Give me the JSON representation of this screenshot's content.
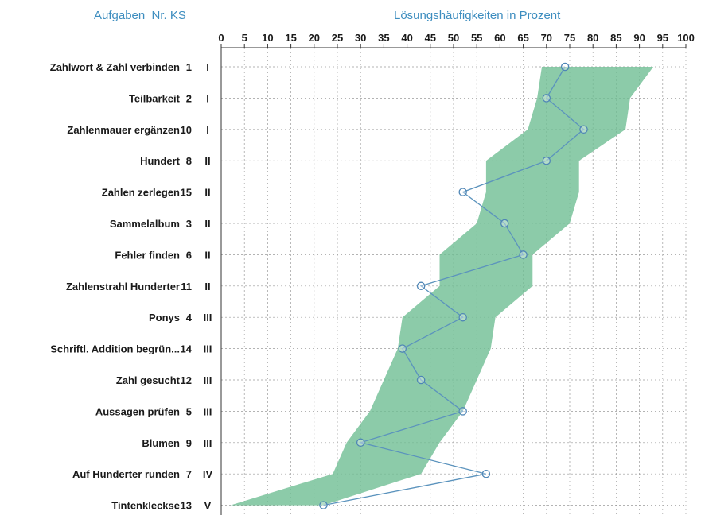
{
  "headers": {
    "left": "Aufgaben  Nr. KS",
    "right": "Lösungshäufigkeiten in Prozent"
  },
  "colors": {
    "band": "#6fbe93",
    "line": "#5b93bd",
    "marker": "#4f86b6",
    "header": "#3d8dbf"
  },
  "chart_data": {
    "type": "line",
    "title": "Lösungshäufigkeiten in Prozent",
    "xlim": [
      0,
      100
    ],
    "x_ticks": [
      "0",
      "5",
      "10",
      "15",
      "20",
      "25",
      "30",
      "35",
      "40",
      "45",
      "50",
      "55",
      "60",
      "65",
      "70",
      "75",
      "80",
      "85",
      "90",
      "95",
      "100"
    ],
    "grid": true,
    "rows": [
      {
        "task": "Zahlwort & Zahl verbinden",
        "nr": "1",
        "ks": "I",
        "value": 74,
        "band_min": 69,
        "band_max": 93
      },
      {
        "task": "Teilbarkeit",
        "nr": "2",
        "ks": "I",
        "value": 70,
        "band_min": 68,
        "band_max": 88
      },
      {
        "task": "Zahlenmauer ergänzen",
        "nr": "10",
        "ks": "I",
        "value": 78,
        "band_min": 66,
        "band_max": 87
      },
      {
        "task": "Hundert",
        "nr": "8",
        "ks": "II",
        "value": 70,
        "band_min": 57,
        "band_max": 77
      },
      {
        "task": "Zahlen zerlegen",
        "nr": "15",
        "ks": "II",
        "value": 52,
        "band_min": 57,
        "band_max": 77
      },
      {
        "task": "Sammelalbum",
        "nr": "3",
        "ks": "II",
        "value": 61,
        "band_min": 55,
        "band_max": 75
      },
      {
        "task": "Fehler finden",
        "nr": "6",
        "ks": "II",
        "value": 65,
        "band_min": 47,
        "band_max": 67
      },
      {
        "task": "Zahlenstrahl Hunderter",
        "nr": "11",
        "ks": "II",
        "value": 43,
        "band_min": 47,
        "band_max": 67
      },
      {
        "task": "Ponys",
        "nr": "4",
        "ks": "III",
        "value": 52,
        "band_min": 39,
        "band_max": 59
      },
      {
        "task": "Schriftl. Addition begrün...",
        "nr": "14",
        "ks": "III",
        "value": 39,
        "band_min": 38,
        "band_max": 58
      },
      {
        "task": "Zahl gesucht",
        "nr": "12",
        "ks": "III",
        "value": 43,
        "band_min": 35,
        "band_max": 55
      },
      {
        "task": "Aussagen prüfen",
        "nr": "5",
        "ks": "III",
        "value": 52,
        "band_min": 32,
        "band_max": 52
      },
      {
        "task": "Blumen",
        "nr": "9",
        "ks": "III",
        "value": 30,
        "band_min": 27,
        "band_max": 47
      },
      {
        "task": "Auf Hunderter runden",
        "nr": "7",
        "ks": "IV",
        "value": 57,
        "band_min": 24,
        "band_max": 43
      },
      {
        "task": "Tintenkleckse",
        "nr": "13",
        "ks": "V",
        "value": 22,
        "band_min": 2,
        "band_max": 22
      }
    ]
  }
}
